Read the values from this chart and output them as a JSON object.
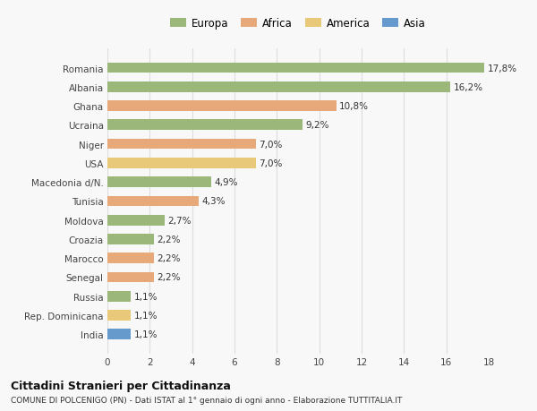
{
  "categories": [
    "India",
    "Rep. Dominicana",
    "Russia",
    "Senegal",
    "Marocco",
    "Croazia",
    "Moldova",
    "Tunisia",
    "Macedonia d/N.",
    "USA",
    "Niger",
    "Ucraina",
    "Ghana",
    "Albania",
    "Romania"
  ],
  "values": [
    1.1,
    1.1,
    1.1,
    2.2,
    2.2,
    2.2,
    2.7,
    4.3,
    4.9,
    7.0,
    7.0,
    9.2,
    10.8,
    16.2,
    17.8
  ],
  "labels": [
    "1,1%",
    "1,1%",
    "1,1%",
    "2,2%",
    "2,2%",
    "2,2%",
    "2,7%",
    "4,3%",
    "4,9%",
    "7,0%",
    "7,0%",
    "9,2%",
    "10,8%",
    "16,2%",
    "17,8%"
  ],
  "colors": [
    "#6699cc",
    "#e8c97a",
    "#9bb87a",
    "#e8a97a",
    "#e8a97a",
    "#9bb87a",
    "#9bb87a",
    "#e8a97a",
    "#9bb87a",
    "#e8c97a",
    "#e8a97a",
    "#9bb87a",
    "#e8a97a",
    "#9bb87a",
    "#9bb87a"
  ],
  "legend_labels": [
    "Europa",
    "Africa",
    "America",
    "Asia"
  ],
  "legend_colors": [
    "#9bb87a",
    "#e8a97a",
    "#e8c97a",
    "#6699cc"
  ],
  "title": "Cittadini Stranieri per Cittadinanza",
  "subtitle": "COMUNE DI POLCENIGO (PN) - Dati ISTAT al 1° gennaio di ogni anno - Elaborazione TUTTITALIA.IT",
  "xlim": [
    0,
    18
  ],
  "xticks": [
    0,
    2,
    4,
    6,
    8,
    10,
    12,
    14,
    16,
    18
  ],
  "background_color": "#f8f8f8",
  "grid_color": "#dddddd",
  "bar_height": 0.55
}
